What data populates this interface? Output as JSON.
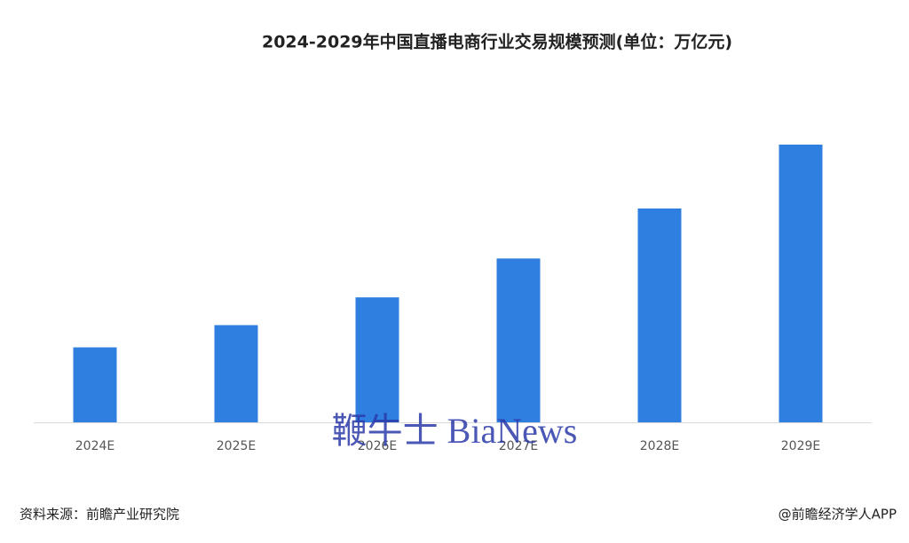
{
  "chart_data": {
    "type": "bar",
    "title": "2024-2029年中国直播电商行业交易规模预测(单位：万亿元)",
    "categories": [
      "2024E",
      "2025E",
      "2026E",
      "2027E",
      "2028E",
      "2029E"
    ],
    "values": [
      2.7,
      3.5,
      4.5,
      5.9,
      7.7,
      10.0
    ],
    "color": "#2f7fe0",
    "ylim": [
      0,
      10
    ],
    "source": "资料来源：前瞻产业研究院",
    "credit": "@前瞻经济学人APP",
    "watermark": "鞭牛士 BiaNews"
  }
}
